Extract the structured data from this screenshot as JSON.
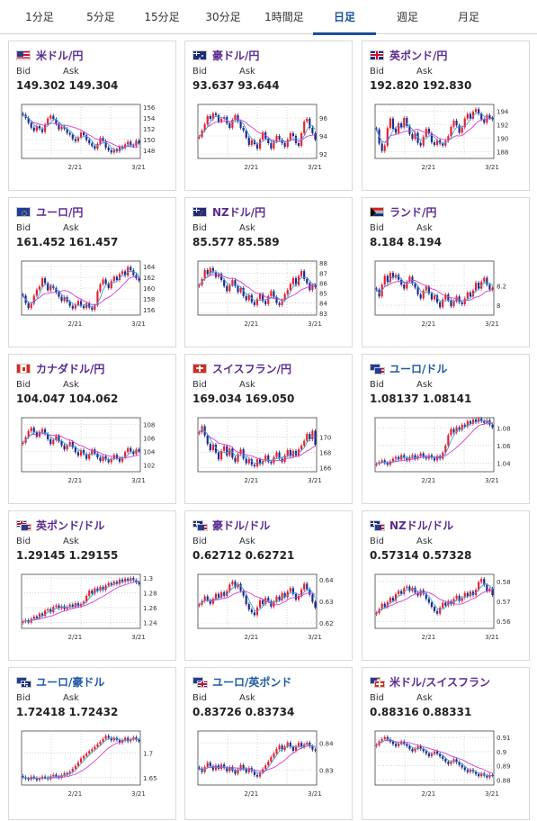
{
  "tabs": [
    {
      "label": "1分足",
      "active": false
    },
    {
      "label": "5分足",
      "active": false
    },
    {
      "label": "15分足",
      "active": false
    },
    {
      "label": "30分足",
      "active": false
    },
    {
      "label": "1時間足",
      "active": false
    },
    {
      "label": "日足",
      "active": true
    },
    {
      "label": "週足",
      "active": false
    },
    {
      "label": "月足",
      "active": false
    }
  ],
  "labels": {
    "bid": "Bid",
    "ask": "Ask"
  },
  "colors": {
    "up": "#e8202a",
    "down": "#1f2a8c",
    "ma_short": "#3aa0e0",
    "ma_long": "#d23ed1",
    "title_purple": "#5b2b91",
    "title_blue": "#1f5aa6",
    "active_tab": "#1a4f9c"
  },
  "cards": [
    {
      "name": "usdjpy",
      "title": "米ドル/円",
      "flag": [
        "us"
      ],
      "bid": "149.302",
      "ask": "149.304",
      "chart_data": {
        "type": "candlestick",
        "x_ticks": [
          "2/21",
          "3/21"
        ],
        "y_ticks": [
          "156",
          "154",
          "152",
          "150",
          "148"
        ],
        "ylim": [
          146.5,
          156.5
        ],
        "closes": [
          154.6,
          154.0,
          153.1,
          152.2,
          151.6,
          152.5,
          152.0,
          151.4,
          152.8,
          153.9,
          154.4,
          153.8,
          152.9,
          151.9,
          152.4,
          152.0,
          151.2,
          150.9,
          150.1,
          149.7,
          150.4,
          151.3,
          150.8,
          149.9,
          149.3,
          148.8,
          148.3,
          149.2,
          150.3,
          149.7,
          148.5,
          148.0,
          147.6,
          148.2,
          147.8,
          148.7,
          148.4,
          149.1,
          149.6,
          148.9,
          148.8,
          149.8,
          149.3
        ]
      }
    },
    {
      "name": "audjpy",
      "title": "豪ドル/円",
      "flag": [
        "au"
      ],
      "bid": "93.637",
      "ask": "93.644",
      "chart_data": {
        "type": "candlestick",
        "x_ticks": [
          "2/21",
          "3/21"
        ],
        "y_ticks": [
          "96",
          "94",
          "92"
        ],
        "ylim": [
          91.5,
          97.5
        ],
        "closes": [
          93.9,
          94.6,
          95.3,
          96.2,
          95.9,
          96.5,
          96.3,
          95.6,
          95.9,
          96.1,
          95.4,
          94.9,
          95.8,
          96.3,
          95.6,
          94.9,
          94.6,
          93.8,
          93.0,
          93.5,
          93.1,
          92.6,
          93.6,
          94.4,
          93.7,
          93.2,
          92.6,
          93.4,
          94.0,
          93.6,
          93.2,
          92.8,
          93.6,
          94.3,
          94.0,
          93.2,
          92.9,
          94.3,
          95.6,
          95.9,
          94.9,
          94.3,
          93.6
        ]
      }
    },
    {
      "name": "gbpjpy",
      "title": "英ポンド/円",
      "flag": [
        "gb"
      ],
      "bid": "192.820",
      "ask": "192.830",
      "chart_data": {
        "type": "candlestick",
        "x_ticks": [
          "2/21",
          "3/21"
        ],
        "y_ticks": [
          "194",
          "192",
          "190",
          "188"
        ],
        "ylim": [
          187.0,
          195.0
        ],
        "closes": [
          191.3,
          189.2,
          188.1,
          188.9,
          191.5,
          192.9,
          191.4,
          190.8,
          192.2,
          191.6,
          193.0,
          191.8,
          190.6,
          189.9,
          190.8,
          189.3,
          188.9,
          190.2,
          191.4,
          190.7,
          189.4,
          189.0,
          189.7,
          189.2,
          188.9,
          189.6,
          190.3,
          191.7,
          192.6,
          191.9,
          190.8,
          191.6,
          192.9,
          193.6,
          192.9,
          193.9,
          194.3,
          193.6,
          192.8,
          192.3,
          193.4,
          193.0,
          192.8
        ]
      }
    },
    {
      "name": "eurjpy",
      "title": "ユーロ/円",
      "flag": [
        "eu"
      ],
      "bid": "161.452",
      "ask": "161.457",
      "chart_data": {
        "type": "candlestick",
        "x_ticks": [
          "2/21",
          "3/21"
        ],
        "y_ticks": [
          "164",
          "162",
          "160",
          "158",
          "156"
        ],
        "ylim": [
          155.0,
          165.0
        ],
        "closes": [
          158.6,
          157.2,
          156.3,
          157.1,
          158.6,
          159.7,
          160.3,
          161.8,
          160.9,
          159.6,
          160.4,
          160.0,
          159.2,
          158.4,
          157.6,
          158.3,
          157.5,
          156.7,
          156.2,
          156.9,
          157.6,
          156.7,
          156.3,
          157.2,
          156.4,
          156.0,
          156.8,
          159.4,
          160.7,
          161.6,
          160.8,
          160.0,
          161.3,
          162.1,
          161.5,
          162.6,
          163.1,
          162.3,
          163.9,
          163.3,
          162.4,
          161.8,
          161.4
        ]
      }
    },
    {
      "name": "nzdjpy",
      "title": "NZドル/円",
      "flag": [
        "nz"
      ],
      "bid": "85.577",
      "ask": "85.589",
      "chart_data": {
        "type": "candlestick",
        "x_ticks": [
          "2/21",
          "3/21"
        ],
        "y_ticks": [
          "88",
          "87",
          "86",
          "85",
          "84",
          "83"
        ],
        "ylim": [
          82.8,
          88.2
        ],
        "closes": [
          85.8,
          86.4,
          87.3,
          86.9,
          87.5,
          87.1,
          86.6,
          86.9,
          86.3,
          85.7,
          85.2,
          85.8,
          86.3,
          85.7,
          85.1,
          85.5,
          84.7,
          84.3,
          84.8,
          84.1,
          83.8,
          84.4,
          84.9,
          84.2,
          83.9,
          84.7,
          85.2,
          84.6,
          84.0,
          83.8,
          84.3,
          84.9,
          85.3,
          85.9,
          86.5,
          85.8,
          86.7,
          87.2,
          86.4,
          86.0,
          85.3,
          85.8,
          85.6
        ]
      }
    },
    {
      "name": "zarjpy",
      "title": "ランド/円",
      "flag": [
        "za"
      ],
      "bid": "8.184",
      "ask": "8.194",
      "chart_data": {
        "type": "candlestick",
        "x_ticks": [
          "2/21",
          "3/21"
        ],
        "y_ticks": [
          "8.2",
          "8"
        ],
        "ylim": [
          7.9,
          8.45
        ],
        "closes": [
          8.16,
          8.09,
          8.21,
          8.3,
          8.24,
          8.33,
          8.28,
          8.31,
          8.26,
          8.21,
          8.17,
          8.24,
          8.29,
          8.22,
          8.18,
          8.11,
          8.07,
          8.15,
          8.19,
          8.12,
          8.06,
          8.1,
          8.03,
          7.98,
          8.06,
          8.11,
          8.05,
          7.99,
          8.04,
          8.09,
          8.03,
          8.01,
          8.07,
          8.13,
          8.09,
          8.15,
          8.23,
          8.17,
          8.24,
          8.28,
          8.21,
          8.16,
          8.18
        ]
      }
    },
    {
      "name": "cadjpy",
      "title": "カナダドル/円",
      "flag": [
        "ca"
      ],
      "bid": "104.047",
      "ask": "104.062",
      "chart_data": {
        "type": "candlestick",
        "x_ticks": [
          "2/21",
          "3/21"
        ],
        "y_ticks": [
          "108",
          "106",
          "104",
          "102"
        ],
        "ylim": [
          101.0,
          109.0
        ],
        "closes": [
          105.3,
          106.1,
          107.0,
          107.5,
          106.8,
          106.2,
          106.9,
          107.3,
          106.6,
          105.8,
          105.1,
          105.7,
          106.3,
          105.5,
          104.9,
          104.3,
          104.9,
          105.4,
          104.6,
          103.9,
          103.4,
          104.2,
          103.6,
          102.9,
          103.6,
          104.3,
          103.7,
          103.1,
          102.6,
          103.3,
          102.8,
          102.4,
          102.9,
          103.5,
          103.0,
          102.5,
          103.1,
          103.9,
          104.5,
          104.0,
          103.6,
          104.3,
          104.0
        ]
      }
    },
    {
      "name": "chfjpy",
      "title": "スイスフラン/円",
      "flag": [
        "ch"
      ],
      "bid": "169.034",
      "ask": "169.050",
      "chart_data": {
        "type": "candlestick",
        "x_ticks": [
          "2/21",
          "3/21"
        ],
        "y_ticks": [
          "170",
          "168",
          "166"
        ],
        "ylim": [
          165.5,
          172.5
        ],
        "closes": [
          170.6,
          171.4,
          170.2,
          169.1,
          168.3,
          169.0,
          168.0,
          167.1,
          168.2,
          168.8,
          167.6,
          168.5,
          167.3,
          166.8,
          167.8,
          168.4,
          167.2,
          166.6,
          167.1,
          166.4,
          166.2,
          167.1,
          166.5,
          166.9,
          167.6,
          166.8,
          166.6,
          167.4,
          168.0,
          167.2,
          166.8,
          167.6,
          168.3,
          167.5,
          168.2,
          167.6,
          168.4,
          168.9,
          169.5,
          170.4,
          169.7,
          170.8,
          169.0
        ]
      }
    },
    {
      "name": "eurusd",
      "title": "ユーロ/ドル",
      "flag": [
        "eu",
        "us"
      ],
      "bid": "1.08137",
      "ask": "1.08141",
      "chart_data": {
        "type": "candlestick",
        "x_ticks": [
          "2/21",
          "3/21"
        ],
        "y_ticks": [
          "1.08",
          "1.06",
          "1.04"
        ],
        "ylim": [
          1.03,
          1.092
        ],
        "closes": [
          1.039,
          1.041,
          1.043,
          1.04,
          1.038,
          1.042,
          1.045,
          1.047,
          1.044,
          1.049,
          1.046,
          1.043,
          1.047,
          1.049,
          1.045,
          1.048,
          1.051,
          1.047,
          1.045,
          1.049,
          1.046,
          1.043,
          1.048,
          1.045,
          1.052,
          1.06,
          1.072,
          1.079,
          1.075,
          1.081,
          1.078,
          1.084,
          1.082,
          1.088,
          1.085,
          1.09,
          1.087,
          1.091,
          1.088,
          1.086,
          1.089,
          1.084,
          1.081
        ]
      }
    },
    {
      "name": "gbpusd",
      "title": "英ポンド/ドル",
      "flag": [
        "gb",
        "us"
      ],
      "bid": "1.29145",
      "ask": "1.29155",
      "chart_data": {
        "type": "candlestick",
        "x_ticks": [
          "2/21",
          "3/21"
        ],
        "y_ticks": [
          "1.3",
          "1.28",
          "1.26",
          "1.24"
        ],
        "ylim": [
          1.232,
          1.305
        ],
        "closes": [
          1.241,
          1.243,
          1.24,
          1.245,
          1.248,
          1.246,
          1.252,
          1.249,
          1.256,
          1.258,
          1.254,
          1.261,
          1.263,
          1.259,
          1.262,
          1.258,
          1.261,
          1.264,
          1.261,
          1.266,
          1.262,
          1.265,
          1.268,
          1.276,
          1.283,
          1.279,
          1.286,
          1.283,
          1.288,
          1.284,
          1.29,
          1.293,
          1.291,
          1.295,
          1.292,
          1.298,
          1.295,
          1.299,
          1.296,
          1.3,
          1.297,
          1.294,
          1.292
        ]
      }
    },
    {
      "name": "audusd",
      "title": "豪ドル/ドル",
      "flag": [
        "au",
        "us"
      ],
      "bid": "0.62712",
      "ask": "0.62721",
      "chart_data": {
        "type": "candlestick",
        "x_ticks": [
          "2/21",
          "3/21"
        ],
        "y_ticks": [
          "0.64",
          "0.63",
          "0.62"
        ],
        "ylim": [
          0.6175,
          0.6425
        ],
        "closes": [
          0.6285,
          0.6302,
          0.6323,
          0.6306,
          0.6289,
          0.6312,
          0.6335,
          0.6318,
          0.6342,
          0.6325,
          0.6348,
          0.6378,
          0.6392,
          0.6365,
          0.6381,
          0.6349,
          0.6326,
          0.6287,
          0.6262,
          0.6249,
          0.6236,
          0.6272,
          0.6305,
          0.6288,
          0.6316,
          0.6301,
          0.6276,
          0.6298,
          0.6322,
          0.6306,
          0.6338,
          0.6319,
          0.6345,
          0.6361,
          0.6334,
          0.6308,
          0.6326,
          0.6354,
          0.6382,
          0.6356,
          0.6331,
          0.6298,
          0.6271
        ]
      }
    },
    {
      "name": "nzdusd",
      "title": "NZドル/ドル",
      "flag": [
        "nz",
        "us"
      ],
      "bid": "0.57314",
      "ask": "0.57328",
      "chart_data": {
        "type": "candlestick",
        "x_ticks": [
          "2/21",
          "3/21"
        ],
        "y_ticks": [
          "0.58",
          "0.57",
          "0.56"
        ],
        "ylim": [
          0.5565,
          0.5835
        ],
        "closes": [
          0.5642,
          0.5661,
          0.5688,
          0.5672,
          0.5696,
          0.5718,
          0.5704,
          0.5736,
          0.5752,
          0.5738,
          0.5766,
          0.5774,
          0.5752,
          0.5768,
          0.5743,
          0.5729,
          0.5756,
          0.5738,
          0.5712,
          0.5694,
          0.5672,
          0.5651,
          0.5639,
          0.5668,
          0.5693,
          0.5679,
          0.5701,
          0.5686,
          0.5712,
          0.5728,
          0.5702,
          0.5719,
          0.5742,
          0.5726,
          0.5749,
          0.5731,
          0.5758,
          0.5796,
          0.5812,
          0.5782,
          0.5752,
          0.5763,
          0.5731
        ]
      }
    },
    {
      "name": "euraud",
      "title": "ユーロ/豪ドル",
      "flag": [
        "eu",
        "au"
      ],
      "bid": "1.72418",
      "ask": "1.72432",
      "chart_data": {
        "type": "candlestick",
        "x_ticks": [
          "2/21",
          "3/21"
        ],
        "y_ticks": [
          "1.7",
          "1.65"
        ],
        "ylim": [
          1.635,
          1.745
        ],
        "closes": [
          1.651,
          1.648,
          1.646,
          1.652,
          1.649,
          1.645,
          1.648,
          1.652,
          1.65,
          1.647,
          1.653,
          1.656,
          1.652,
          1.65,
          1.655,
          1.659,
          1.657,
          1.662,
          1.668,
          1.674,
          1.681,
          1.689,
          1.694,
          1.699,
          1.704,
          1.708,
          1.713,
          1.718,
          1.723,
          1.729,
          1.735,
          1.731,
          1.726,
          1.731,
          1.727,
          1.721,
          1.726,
          1.731,
          1.724,
          1.728,
          1.732,
          1.727,
          1.724
        ]
      }
    },
    {
      "name": "eurgbp",
      "title": "ユーロ/英ポンド",
      "flag": [
        "eu",
        "gb"
      ],
      "bid": "0.83726",
      "ask": "0.83734",
      "chart_data": {
        "type": "candlestick",
        "x_ticks": [
          "2/21",
          "3/21"
        ],
        "y_ticks": [
          "0.84",
          "0.83"
        ],
        "ylim": [
          0.8245,
          0.8445
        ],
        "closes": [
          0.8306,
          0.8293,
          0.8312,
          0.8328,
          0.8315,
          0.8301,
          0.8318,
          0.8305,
          0.8321,
          0.8308,
          0.8296,
          0.8312,
          0.8298,
          0.8287,
          0.8303,
          0.8319,
          0.8305,
          0.8292,
          0.8308,
          0.8296,
          0.8282,
          0.8276,
          0.8291,
          0.8304,
          0.8318,
          0.8332,
          0.8348,
          0.8362,
          0.8378,
          0.8391,
          0.8375,
          0.8388,
          0.8402,
          0.8386,
          0.8372,
          0.8389,
          0.8401,
          0.8385,
          0.8396,
          0.8402,
          0.8388,
          0.8376,
          0.8373
        ]
      }
    },
    {
      "name": "usdchf",
      "title": "米ドル/スイスフラン",
      "flag": [
        "us",
        "ch"
      ],
      "bid": "0.88316",
      "ask": "0.88331",
      "chart_data": {
        "type": "candlestick",
        "x_ticks": [
          "2/21",
          "3/21"
        ],
        "y_ticks": [
          "0.91",
          "0.9",
          "0.89",
          "0.88"
        ],
        "ylim": [
          0.8765,
          0.9145
        ],
        "closes": [
          0.9046,
          0.9072,
          0.9088,
          0.9102,
          0.9086,
          0.9069,
          0.9053,
          0.9038,
          0.9056,
          0.9071,
          0.9054,
          0.9039,
          0.9018,
          0.9002,
          0.9021,
          0.9038,
          0.9019,
          0.9003,
          0.8986,
          0.8968,
          0.8984,
          0.9002,
          0.8985,
          0.8966,
          0.8948,
          0.8929,
          0.8912,
          0.8928,
          0.8946,
          0.8925,
          0.8906,
          0.8888,
          0.8871,
          0.8856,
          0.8872,
          0.8858,
          0.8842,
          0.8827,
          0.8846,
          0.8831,
          0.8818,
          0.8836,
          0.8832
        ]
      }
    }
  ]
}
